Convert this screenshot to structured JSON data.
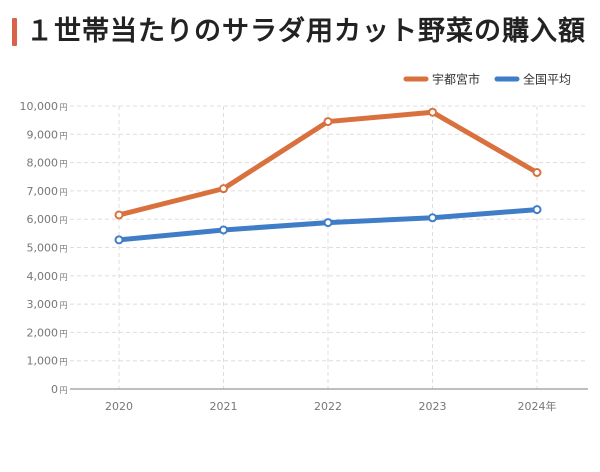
{
  "page": {
    "title": "１世帯当たりのサラダ用カット野菜の購入額"
  },
  "chart_data": {
    "type": "line",
    "title": "１世帯当たりのサラダ用カット野菜の購入額",
    "categories": [
      "2020",
      "2021",
      "2022",
      "2023",
      "2024年"
    ],
    "series": [
      {
        "name": "宇都宮市",
        "color": "#d9713f",
        "values": [
          6150,
          7080,
          9450,
          9780,
          7650
        ]
      },
      {
        "name": "全国平均",
        "color": "#3f7ec7",
        "values": [
          5270,
          5620,
          5880,
          6050,
          6340
        ]
      }
    ],
    "y_ticks": [
      0,
      1000,
      2000,
      3000,
      4000,
      5000,
      6000,
      7000,
      8000,
      9000,
      10000
    ],
    "y_tick_labels": [
      "0",
      "1,000",
      "2,000",
      "3,000",
      "4,000",
      "5,000",
      "6,000",
      "7,000",
      "8,000",
      "9,000",
      "10,000"
    ],
    "y_unit": "円",
    "ylim": [
      0,
      10000
    ],
    "grid": true,
    "legend_position": "top-right"
  }
}
